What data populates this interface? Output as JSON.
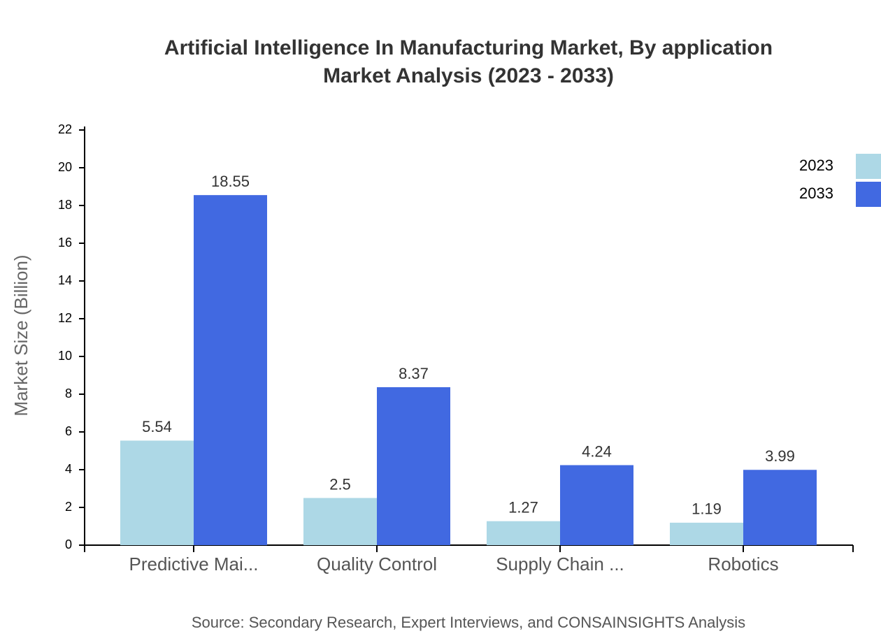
{
  "chart_data": {
    "type": "bar",
    "title": "Artificial Intelligence In Manufacturing Market, By application",
    "subtitle": "Market Analysis (2023 - 2033)",
    "y_label": "Market Size (Billion)",
    "source": "Source: Secondary Research, Expert Interviews, and CONSAINSIGHTS Analysis",
    "categories": [
      "Predictive Mai...",
      "Quality Control",
      "Supply Chain ...",
      "Robotics"
    ],
    "series": [
      {
        "name": "2023",
        "color": "#add8e6",
        "values": [
          5.54,
          2.5,
          1.27,
          1.19
        ]
      },
      {
        "name": "2033",
        "color": "#4169e1",
        "values": [
          18.55,
          8.37,
          4.24,
          3.99
        ]
      }
    ],
    "ylim": [
      0,
      22
    ],
    "yticks": [
      0,
      2,
      4,
      6,
      8,
      10,
      12,
      14,
      16,
      18,
      20,
      22
    ],
    "legend": "top-right"
  }
}
